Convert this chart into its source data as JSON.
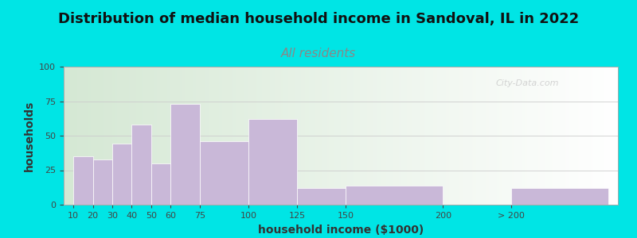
{
  "title": "Distribution of median household income in Sandoval, IL in 2022",
  "subtitle": "All residents",
  "xlabel": "household income ($1000)",
  "ylabel": "households",
  "bar_labels": [
    "10",
    "20",
    "30",
    "40",
    "50",
    "60",
    "75",
    "100",
    "125",
    "150",
    "200",
    "> 200"
  ],
  "bar_values": [
    35,
    33,
    44,
    58,
    30,
    73,
    46,
    62,
    12,
    14,
    0,
    12
  ],
  "bar_positions": [
    0,
    10,
    20,
    30,
    40,
    50,
    65,
    90,
    115,
    140,
    190,
    225
  ],
  "bar_widths": [
    10,
    10,
    10,
    10,
    10,
    15,
    25,
    25,
    25,
    50,
    35,
    50
  ],
  "bar_color": "#c9b8d8",
  "bar_edge_color": "#ffffff",
  "ylim": [
    0,
    100
  ],
  "yticks": [
    0,
    25,
    50,
    75,
    100
  ],
  "xlim_min": -5,
  "xlim_max": 280,
  "bg_outer": "#00e5e5",
  "bg_inner_left": "#d5e8d4",
  "bg_inner_right": "#f8fff8",
  "title_fontsize": 13,
  "subtitle_fontsize": 11,
  "subtitle_color": "#888888",
  "axis_label_fontsize": 10,
  "tick_label_fontsize": 8,
  "watermark": "City-Data.com"
}
